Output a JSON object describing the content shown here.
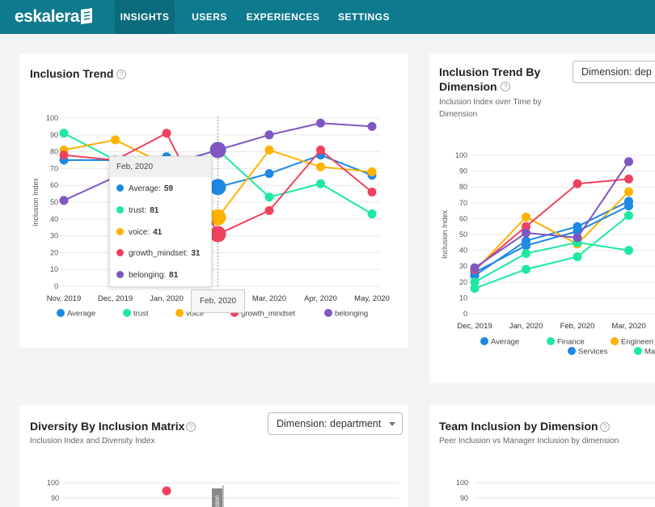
{
  "app": {
    "logo": "eskalera"
  },
  "nav": {
    "items": [
      "INSIGHTS",
      "USERS",
      "EXPERIENCES",
      "SETTINGS"
    ],
    "active": "INSIGHTS"
  },
  "colors": {
    "nav_bg": "#0e7a8d",
    "average": "#1e88e5",
    "trust": "#1de9a0",
    "voice": "#ffb300",
    "growth_mindset": "#f0425e",
    "belonging": "#7e57c2",
    "services": "#1e88e5"
  },
  "cards": {
    "inclusion_trend": {
      "title": "Inclusion Trend",
      "tooltip": {
        "header": "Feb, 2020",
        "rows": [
          {
            "label": "Average:",
            "value": "59"
          },
          {
            "label": "trust:",
            "value": "81"
          },
          {
            "label": "voice:",
            "value": "41"
          },
          {
            "label": "growth_mindset:",
            "value": "31"
          },
          {
            "label": "belonging:",
            "value": "81"
          }
        ]
      },
      "hover_x_label": "Feb, 2020"
    },
    "trend_by_dimension": {
      "title_line1": "Inclusion Trend By",
      "title_line2": "Dimension",
      "subtitle_line1": "Inclusion Index over Time by",
      "subtitle_line2": "Dimension",
      "dropdown": "Dimension: dep"
    },
    "diversity_matrix": {
      "title": "Diversity By Inclusion Matrix",
      "subtitle": "Inclusion Index and Diversity Index",
      "dropdown": "Dimension: department",
      "y_ticks": [
        "100",
        "90"
      ],
      "partial_label": "sion"
    },
    "team_inclusion": {
      "title": "Team Inclusion by Dimension",
      "subtitle": "Peer Inclusion vs Manager Inclusion by dimension",
      "y_ticks": [
        "100",
        "90"
      ]
    }
  },
  "chart_data": [
    {
      "type": "line",
      "ylabel": "Inclusion Index",
      "ylim": [
        0,
        100
      ],
      "yticks": [
        0,
        10,
        20,
        30,
        40,
        50,
        60,
        70,
        80,
        90,
        100
      ],
      "categories": [
        "Nov, 2019",
        "Dec, 2019",
        "Jan, 2020",
        "Feb, 2020",
        "Mar, 2020",
        "Apr, 2020",
        "May, 2020"
      ],
      "legend_position": "bottom",
      "series": [
        {
          "name": "Average",
          "values": [
            75,
            75,
            77,
            59,
            67,
            78,
            66
          ]
        },
        {
          "name": "trust",
          "values": [
            91,
            75,
            72,
            81,
            53,
            61,
            43
          ]
        },
        {
          "name": "voice",
          "values": [
            81,
            87,
            72,
            41,
            81,
            71,
            68
          ]
        },
        {
          "name": "growth_mindset",
          "values": [
            78,
            75,
            91,
            31,
            45,
            81,
            56
          ]
        },
        {
          "name": "belonging",
          "values": [
            51,
            65,
            72,
            81,
            90,
            97,
            95
          ]
        }
      ]
    },
    {
      "type": "line",
      "ylabel": "Inclusion Index",
      "ylim": [
        0,
        100
      ],
      "yticks": [
        0,
        10,
        20,
        30,
        40,
        50,
        60,
        70,
        80,
        90,
        100
      ],
      "categories": [
        "Dec, 2019",
        "Jan, 2020",
        "Feb, 2020",
        "Mar, 2020"
      ],
      "legend_position": "bottom",
      "series": [
        {
          "name": "Average",
          "values": [
            24,
            46,
            55,
            71
          ]
        },
        {
          "name": "Finance",
          "values": [
            16,
            28,
            36,
            62
          ]
        },
        {
          "name": "Engineeri",
          "values": [
            27,
            61,
            44,
            77
          ]
        },
        {
          "name": "Services",
          "values": [
            26,
            43,
            52,
            68
          ]
        },
        {
          "name": "Ma",
          "values": [
            20,
            38,
            45,
            40
          ]
        },
        {
          "name": "",
          "values": [
            28,
            55,
            82,
            85
          ]
        },
        {
          "name": "",
          "values": [
            29,
            51,
            48,
            96
          ]
        }
      ]
    }
  ]
}
